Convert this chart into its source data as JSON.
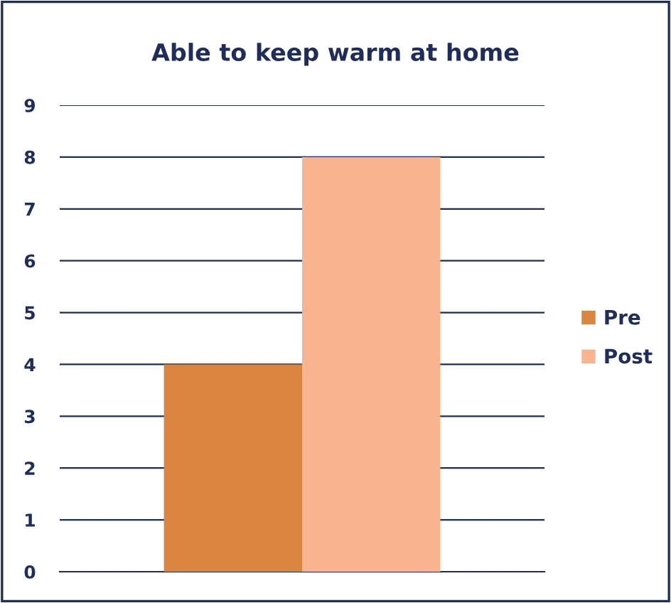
{
  "chart_data": {
    "type": "bar",
    "title": "Able to keep warm at home",
    "categories": [
      null
    ],
    "series": [
      {
        "name": "Pre",
        "color": "#d9843f",
        "values": [
          4
        ]
      },
      {
        "name": "Post",
        "color": "#f8b48e",
        "values": [
          8
        ]
      }
    ],
    "ylim": [
      0,
      9
    ],
    "yticks": [
      0,
      1,
      2,
      3,
      4,
      5,
      6,
      7,
      8,
      9
    ],
    "grid": "y",
    "legend": "right"
  }
}
